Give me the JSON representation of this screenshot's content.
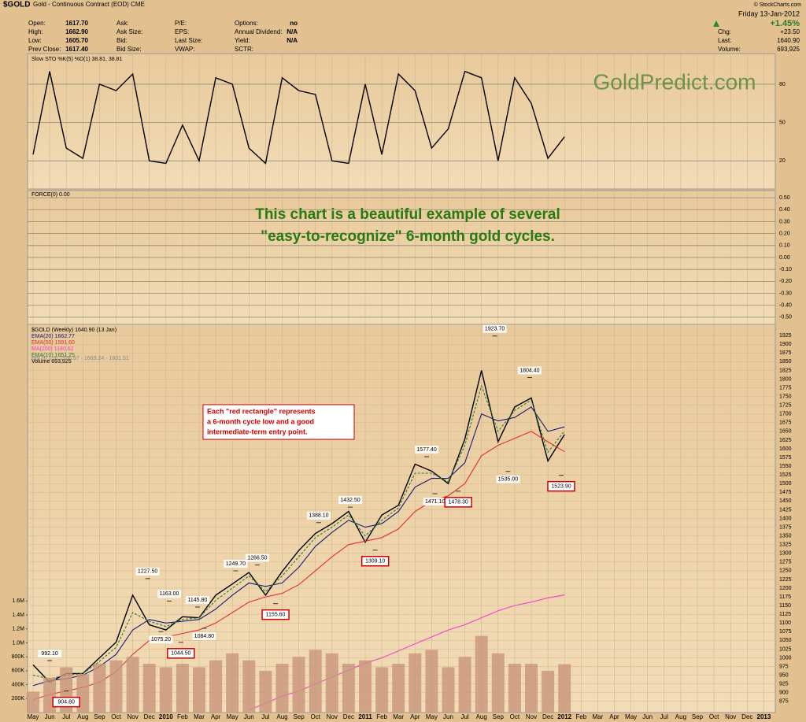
{
  "header": {
    "title": "$GOLD",
    "subtitle": "Gold - Continuous Contract (EOD) CME",
    "source": "© StockCharts.com",
    "columns": [
      [
        {
          "label": "Open:",
          "value": "1617.70"
        },
        {
          "label": "High:",
          "value": "1662.90"
        },
        {
          "label": "Low:",
          "value": "1605.70"
        },
        {
          "label": "Prev Close:",
          "value": "1617.40"
        }
      ],
      [
        {
          "label": "Ask:"
        },
        {
          "label": "Ask Size:"
        },
        {
          "label": "Bid:"
        },
        {
          "label": "Bid Size:"
        }
      ],
      [
        {
          "label": "P/E:"
        },
        {
          "label": "EPS:"
        },
        {
          "label": "Last Size:"
        },
        {
          "label": "VWAP:"
        }
      ],
      [
        {
          "label": "Options:",
          "value": "no"
        },
        {
          "label": "Annual Dividend:",
          "value": "N/A"
        },
        {
          "label": "Yield:",
          "value": "N/A"
        },
        {
          "label": "SCTR:"
        }
      ]
    ],
    "date": "Friday  13-Jan-2012",
    "change_pct": "+1.45%",
    "right": [
      {
        "label": "Chg:",
        "value": "+23.50"
      },
      {
        "label": "Last:",
        "value": "1640.90"
      },
      {
        "label": "Volume:",
        "value": "693,925"
      }
    ]
  },
  "chart_data": [
    {
      "type": "line",
      "watermark": "GoldPredict.com",
      "grid": true,
      "ylim": [
        -2,
        104
      ],
      "yticks": [
        20,
        50,
        80
      ],
      "series": [
        {
          "name": "Slow STO %K(5) %D(1) 38.81, 38.81",
          "color": "#000000",
          "values": [
            25,
            90,
            30,
            22,
            80,
            75,
            88,
            20,
            18,
            48,
            20,
            85,
            80,
            30,
            18,
            85,
            75,
            72,
            20,
            18,
            80,
            25,
            88,
            75,
            30,
            45,
            90,
            85,
            20,
            85,
            65,
            22,
            38.81,
            null,
            null,
            null,
            null,
            null,
            null,
            null,
            null,
            null,
            null,
            null,
            null
          ]
        }
      ]
    },
    {
      "type": "line",
      "title": "FORCE(0) 0.00",
      "grid": true,
      "annotation": [
        "This chart is a beautiful example of several",
        "\"easy-to-recognize\" 6-month gold cycles."
      ],
      "ylim": [
        -0.56,
        0.56
      ],
      "yticks": [
        {
          "value": 0.5,
          "label": "0.50"
        },
        {
          "value": 0.4,
          "label": "0.40"
        },
        {
          "value": 0.3,
          "label": "0.30"
        },
        {
          "value": 0.2,
          "label": "0.20"
        },
        {
          "value": 0.1,
          "label": "0.10"
        },
        {
          "value": 0,
          "label": "0.00"
        },
        {
          "value": -0.1,
          "label": "-0.10"
        },
        {
          "value": -0.2,
          "label": "-0.20"
        },
        {
          "value": -0.3,
          "label": "-0.30"
        },
        {
          "value": -0.4,
          "label": "-0.40"
        },
        {
          "value": -0.5,
          "label": "-0.50"
        }
      ]
    },
    {
      "type": "line",
      "grid": true,
      "categories": [
        "May",
        "Jun",
        "Jul",
        "Aug",
        "Sep",
        "Oct",
        "Nov",
        "Dec",
        "2010",
        "Feb",
        "Mar",
        "Apr",
        "May",
        "Jun",
        "Jul",
        "Aug",
        "Sep",
        "Oct",
        "Nov",
        "Dec",
        "2011",
        "Feb",
        "Mar",
        "Apr",
        "May",
        "Jun",
        "Jul",
        "Aug",
        "Sep",
        "Oct",
        "Nov",
        "Dec",
        "2012",
        "Feb",
        "Mar",
        "Apr",
        "May",
        "Jun",
        "Jul",
        "Aug",
        "Sep",
        "Oct",
        "Nov",
        "Dec",
        "2013"
      ],
      "ylim": [
        843,
        1957
      ],
      "yticks": [
        875,
        900,
        925,
        950,
        975,
        1000,
        1025,
        1050,
        1075,
        1100,
        1125,
        1150,
        1175,
        1200,
        1225,
        1250,
        1275,
        1300,
        1325,
        1350,
        1375,
        1400,
        1425,
        1450,
        1475,
        1500,
        1525,
        1550,
        1575,
        1600,
        1625,
        1650,
        1675,
        1700,
        1725,
        1750,
        1775,
        1800,
        1825,
        1850,
        1875,
        1900,
        1925
      ],
      "y2lim": [
        0,
        5570000
      ],
      "y2ticks": [
        {
          "value": 200000,
          "label": "200K"
        },
        {
          "value": 400000,
          "label": "400K"
        },
        {
          "value": 600000,
          "label": "600K"
        },
        {
          "value": 800000,
          "label": "800K"
        },
        {
          "value": 1000000,
          "label": "1.0M"
        },
        {
          "value": 1200000,
          "label": "1.2M"
        },
        {
          "value": 1400000,
          "label": "1.4M"
        },
        {
          "value": 1600000,
          "label": "1.6M"
        }
      ],
      "bb_label": "BB(20,1.9) 1536.97 - 1669.24 - 1801.51",
      "note": [
        "Each \"red rectangle\" represents",
        "a 6-month cycle low and a good",
        "intermediate-term entry point."
      ],
      "series": [
        {
          "name": "$GOLD (Weekly) 1640.90 (13 Jan)",
          "color": "#000000",
          "values": [
            980,
            930,
            955,
            955,
            1000,
            1045,
            1180,
            1095,
            1080,
            1118,
            1115,
            1180,
            1212,
            1245,
            1180,
            1248,
            1308,
            1357,
            1385,
            1420,
            1332,
            1410,
            1438,
            1556,
            1536,
            1500,
            1628,
            1825,
            1620,
            1720,
            1746,
            1565,
            1640.9,
            null,
            null,
            null,
            null,
            null,
            null,
            null,
            null,
            null,
            null,
            null,
            null
          ]
        },
        {
          "name": "EMA(20) 1662.77",
          "color": "#1a1a7a",
          "values": [
            920,
            935,
            940,
            950,
            975,
            1010,
            1080,
            1110,
            1100,
            1105,
            1110,
            1140,
            1180,
            1215,
            1205,
            1215,
            1260,
            1320,
            1360,
            1395,
            1375,
            1385,
            1420,
            1490,
            1515,
            1515,
            1560,
            1700,
            1680,
            1690,
            1720,
            1650,
            1662.77,
            null,
            null,
            null,
            null,
            null,
            null,
            null,
            null,
            null,
            null,
            null,
            null
          ]
        },
        {
          "name": "EMA(50) 1591.60",
          "color": "#e03030",
          "values": [
            880,
            895,
            905,
            915,
            930,
            960,
            1010,
            1050,
            1060,
            1070,
            1080,
            1100,
            1130,
            1160,
            1175,
            1185,
            1210,
            1250,
            1290,
            1325,
            1335,
            1345,
            1370,
            1420,
            1450,
            1465,
            1500,
            1580,
            1610,
            1630,
            1650,
            1620,
            1591.6,
            null,
            null,
            null,
            null,
            null,
            null,
            null,
            null,
            null,
            null,
            null,
            null
          ]
        },
        {
          "name": "MA(200) 1180.62",
          "color": "#ee44cc",
          "values": [
            null,
            null,
            null,
            null,
            null,
            null,
            null,
            null,
            null,
            null,
            null,
            null,
            null,
            850,
            870,
            890,
            905,
            925,
            945,
            965,
            985,
            1000,
            1020,
            1040,
            1060,
            1080,
            1095,
            1115,
            1135,
            1150,
            1160,
            1172,
            1180.62,
            null,
            null,
            null,
            null,
            null,
            null,
            null,
            null,
            null,
            null,
            null,
            null
          ]
        },
        {
          "name": "EMA(10) 1651.25",
          "color": "#2a7a2a",
          "dashed": true,
          "values": [
            950,
            940,
            950,
            955,
            990,
            1030,
            1130,
            1105,
            1090,
            1110,
            1115,
            1165,
            1200,
            1235,
            1190,
            1235,
            1290,
            1345,
            1375,
            1410,
            1350,
            1395,
            1430,
            1530,
            1530,
            1505,
            1610,
            1780,
            1650,
            1710,
            1740,
            1590,
            1651.25,
            null,
            null,
            null,
            null,
            null,
            null,
            null,
            null,
            null,
            null,
            null,
            null
          ]
        },
        {
          "name": "Volume 693,925",
          "color": "#c8957a",
          "axis": "y2",
          "values": [
            300000,
            500000,
            650000,
            550000,
            700000,
            750000,
            800000,
            700000,
            650000,
            700000,
            650000,
            750000,
            850000,
            750000,
            600000,
            700000,
            800000,
            900000,
            850000,
            700000,
            750000,
            650000,
            700000,
            850000,
            900000,
            650000,
            800000,
            1100000,
            850000,
            700000,
            700000,
            600000,
            693925,
            null,
            null,
            null,
            null,
            null,
            null,
            null,
            null,
            null,
            null,
            null,
            null
          ]
        }
      ],
      "high_labels": [
        {
          "x": 1.0,
          "value": 992.1,
          "label": "992.10"
        },
        {
          "x": 6.9,
          "value": 1227.5,
          "label": "1227.50"
        },
        {
          "x": 8.2,
          "value": 1163,
          "label": "1163.00"
        },
        {
          "x": 9.9,
          "value": 1145.8,
          "label": "1145.80"
        },
        {
          "x": 12.2,
          "value": 1249.7,
          "label": "1249.70"
        },
        {
          "x": 13.5,
          "value": 1266.5,
          "label": "1266.50"
        },
        {
          "x": 17.2,
          "value": 1388.1,
          "label": "1388.10"
        },
        {
          "x": 19.1,
          "value": 1432.5,
          "label": "1432.50"
        },
        {
          "x": 23.7,
          "value": 1577.4,
          "label": "1577.40"
        },
        {
          "x": 27.8,
          "value": 1923.7,
          "label": "1923.70"
        },
        {
          "x": 29.9,
          "value": 1804.4,
          "label": "1804.40"
        }
      ],
      "low_labels": [
        {
          "x": 7.7,
          "value": 1075.2,
          "label": "1075.20"
        },
        {
          "x": 10.3,
          "value": 1084.8,
          "label": "1084.80"
        },
        {
          "x": 24.2,
          "value": 1471.1,
          "label": "1471.10"
        },
        {
          "x": 28.6,
          "value": 1535,
          "label": "1535.00"
        }
      ],
      "cycle_lows": [
        {
          "x": 2.0,
          "value": 904.8,
          "label": "904.80"
        },
        {
          "x": 8.9,
          "value": 1044.5,
          "label": "1044.50"
        },
        {
          "x": 14.6,
          "value": 1155.6,
          "label": "1155.60"
        },
        {
          "x": 20.6,
          "value": 1309.1,
          "label": "1309.10"
        },
        {
          "x": 25.6,
          "value": 1478.3,
          "label": "1478.30"
        },
        {
          "x": 31.8,
          "value": 1523.9,
          "label": "1523.90"
        }
      ]
    }
  ]
}
